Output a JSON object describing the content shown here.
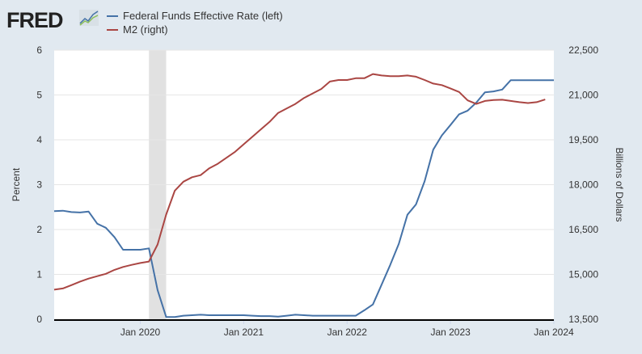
{
  "logo": "FRED",
  "chart_data": {
    "type": "line",
    "title": "",
    "legend_placement": "top-left",
    "x_start": "2019-03",
    "x_ticks": [
      "Jan 2020",
      "Jan 2021",
      "Jan 2022",
      "Jan 2023",
      "Jan 2024"
    ],
    "ylabel_left": "Percent",
    "ylabel_right": "Billions of Dollars",
    "ylim_left": [
      0,
      6
    ],
    "ylim_right": [
      13500,
      22500
    ],
    "yticks_left": [
      "0",
      "1",
      "2",
      "3",
      "4",
      "5",
      "6"
    ],
    "yticks_right": [
      "13,500",
      "15,000",
      "16,500",
      "18,000",
      "19,500",
      "21,000",
      "22,500"
    ],
    "recession": {
      "start": "2020-02",
      "end": "2020-04"
    },
    "grid": true,
    "series": [
      {
        "name": "Federal Funds Effective Rate (left)",
        "color": "#4572a7",
        "axis": "left",
        "values": [
          2.41,
          2.42,
          2.39,
          2.38,
          2.4,
          2.13,
          2.04,
          1.83,
          1.55,
          1.55,
          1.55,
          1.58,
          0.65,
          0.05,
          0.05,
          0.08,
          0.09,
          0.1,
          0.09,
          0.09,
          0.09,
          0.09,
          0.09,
          0.08,
          0.07,
          0.07,
          0.06,
          0.08,
          0.1,
          0.09,
          0.08,
          0.08,
          0.08,
          0.08,
          0.08,
          0.08,
          0.2,
          0.33,
          0.77,
          1.21,
          1.68,
          2.33,
          2.56,
          3.08,
          3.78,
          4.1,
          4.33,
          4.57,
          4.65,
          4.83,
          5.06,
          5.08,
          5.12,
          5.33,
          5.33,
          5.33,
          5.33,
          5.33,
          5.33
        ]
      },
      {
        "name": "M2 (right)",
        "color": "#aa4643",
        "axis": "right",
        "values": [
          14490,
          14530,
          14640,
          14760,
          14860,
          14940,
          15020,
          15150,
          15250,
          15320,
          15380,
          15430,
          16000,
          17000,
          17800,
          18100,
          18250,
          18320,
          18550,
          18700,
          18900,
          19100,
          19350,
          19600,
          19850,
          20100,
          20400,
          20550,
          20700,
          20900,
          21050,
          21200,
          21450,
          21500,
          21500,
          21560,
          21560,
          21700,
          21650,
          21630,
          21630,
          21650,
          21610,
          21500,
          21380,
          21330,
          21220,
          21100,
          20820,
          20700,
          20800,
          20830,
          20840,
          20800,
          20760,
          20730,
          20760,
          20850
        ]
      }
    ]
  }
}
